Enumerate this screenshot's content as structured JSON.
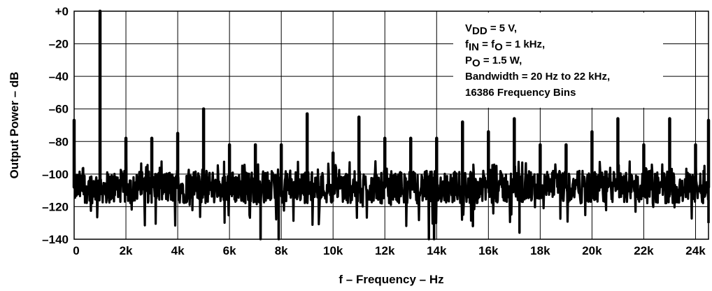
{
  "chart_data": {
    "type": "line",
    "xlabel": "f – Frequency – Hz",
    "ylabel": "Output Power – dB",
    "xlim": [
      0,
      24500
    ],
    "ylim": [
      -140,
      0
    ],
    "grid": true,
    "x_ticks": [
      {
        "value": 0,
        "label": "0"
      },
      {
        "value": 2000,
        "label": "2k"
      },
      {
        "value": 4000,
        "label": "4k"
      },
      {
        "value": 6000,
        "label": "6k"
      },
      {
        "value": 8000,
        "label": "8k"
      },
      {
        "value": 10000,
        "label": "10k"
      },
      {
        "value": 12000,
        "label": "12k"
      },
      {
        "value": 14000,
        "label": "14k"
      },
      {
        "value": 16000,
        "label": "16k"
      },
      {
        "value": 18000,
        "label": "18k"
      },
      {
        "value": 20000,
        "label": "20k"
      },
      {
        "value": 22000,
        "label": "22k"
      },
      {
        "value": 24000,
        "label": "24k"
      }
    ],
    "y_ticks": [
      {
        "value": 0,
        "label": "+0"
      },
      {
        "value": -20,
        "label": "–20"
      },
      {
        "value": -40,
        "label": "–40"
      },
      {
        "value": -60,
        "label": "–60"
      },
      {
        "value": -80,
        "label": "–80"
      },
      {
        "value": -100,
        "label": "–100"
      },
      {
        "value": -120,
        "label": "–120"
      },
      {
        "value": -140,
        "label": "–140"
      }
    ],
    "annotation_lines": [
      {
        "parts": [
          {
            "t": "V"
          },
          {
            "t": "DD",
            "sub": true
          },
          {
            "t": " = 5 V,"
          }
        ]
      },
      {
        "parts": [
          {
            "t": "f"
          },
          {
            "t": "IN",
            "sub": true
          },
          {
            "t": " = f"
          },
          {
            "t": "O",
            "sub": true
          },
          {
            "t": " = 1 kHz,"
          }
        ]
      },
      {
        "parts": [
          {
            "t": "P"
          },
          {
            "t": "O",
            "sub": true
          },
          {
            "t": " = 1.5 W,"
          }
        ]
      },
      {
        "parts": [
          {
            "t": "Bandwidth = 20 Hz to 22 kHz,"
          }
        ]
      },
      {
        "parts": [
          {
            "t": "16386 Frequency Bins"
          }
        ]
      }
    ],
    "noise_floor": {
      "center_db": -108,
      "spread_db": 10,
      "min_db": -140
    },
    "series": [
      {
        "line_color": "#000000",
        "peaks": [
          {
            "x": 0,
            "y": -67
          },
          {
            "x": 1000,
            "y": 0
          },
          {
            "x": 2000,
            "y": -78
          },
          {
            "x": 3000,
            "y": -78
          },
          {
            "x": 4000,
            "y": -75
          },
          {
            "x": 5000,
            "y": -60
          },
          {
            "x": 6000,
            "y": -82
          },
          {
            "x": 7000,
            "y": -82
          },
          {
            "x": 8000,
            "y": -82
          },
          {
            "x": 9000,
            "y": -63
          },
          {
            "x": 10000,
            "y": -87
          },
          {
            "x": 11000,
            "y": -65
          },
          {
            "x": 12000,
            "y": -78
          },
          {
            "x": 13000,
            "y": -78
          },
          {
            "x": 14000,
            "y": -78
          },
          {
            "x": 15000,
            "y": -68
          },
          {
            "x": 16000,
            "y": -74
          },
          {
            "x": 17000,
            "y": -66
          },
          {
            "x": 18000,
            "y": -82
          },
          {
            "x": 19000,
            "y": -82
          },
          {
            "x": 20000,
            "y": -74
          },
          {
            "x": 21000,
            "y": -66
          },
          {
            "x": 22000,
            "y": -82
          },
          {
            "x": 23000,
            "y": -66
          },
          {
            "x": 24000,
            "y": -82
          },
          {
            "x": 24500,
            "y": -67
          }
        ],
        "dips": [
          {
            "x": 7200,
            "y": -140
          },
          {
            "x": 7900,
            "y": -140
          },
          {
            "x": 13700,
            "y": -140
          },
          {
            "x": 13900,
            "y": -140
          },
          {
            "x": 15400,
            "y": -132
          },
          {
            "x": 17200,
            "y": -136
          },
          {
            "x": 24500,
            "y": -130
          }
        ]
      }
    ]
  }
}
